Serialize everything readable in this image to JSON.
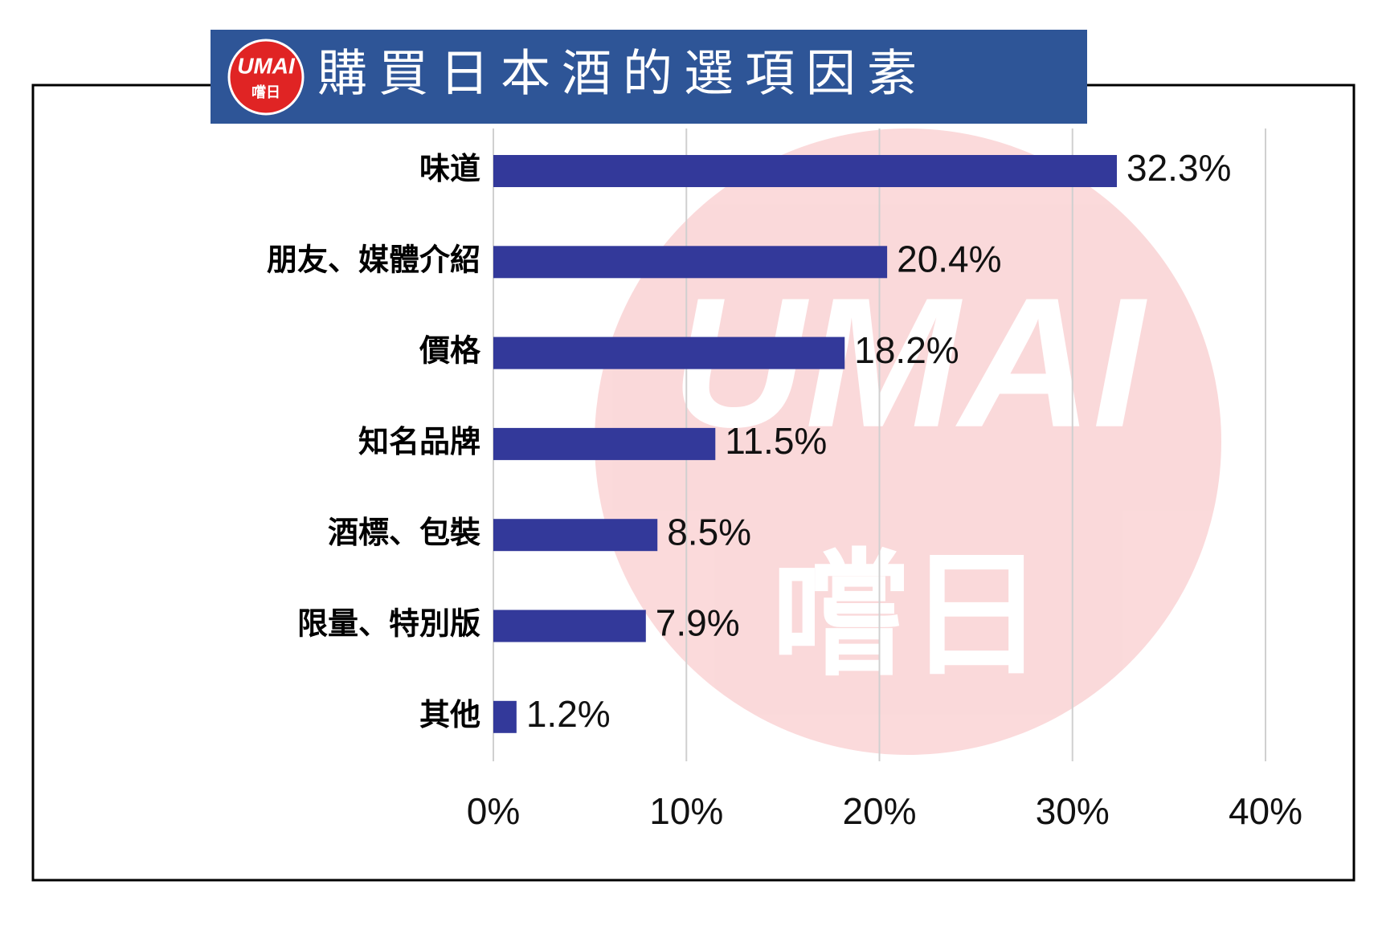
{
  "chart_data": {
    "type": "bar",
    "orientation": "horizontal",
    "title": "購買日本酒的選項因素",
    "logo": [
      "UMAI",
      "嚐日"
    ],
    "categories": [
      "味道",
      "朋友、媒體介紹",
      "價格",
      "知名品牌",
      "酒標、包裝",
      "限量、特別版",
      "其他"
    ],
    "values": [
      32.3,
      20.4,
      18.2,
      11.5,
      8.5,
      7.9,
      1.2
    ],
    "value_labels": [
      "32.3%",
      "20.4%",
      "18.2%",
      "11.5%",
      "8.5%",
      "7.9%",
      "1.2%"
    ],
    "color": "#33399a",
    "xlim": [
      0,
      40
    ],
    "xticks": [
      {
        "value": 0,
        "label": "0%"
      },
      {
        "value": 10,
        "label": "10%"
      },
      {
        "value": 20,
        "label": "20%"
      },
      {
        "value": 30,
        "label": "30%"
      },
      {
        "value": 40,
        "label": "40%"
      }
    ],
    "grid": true
  }
}
